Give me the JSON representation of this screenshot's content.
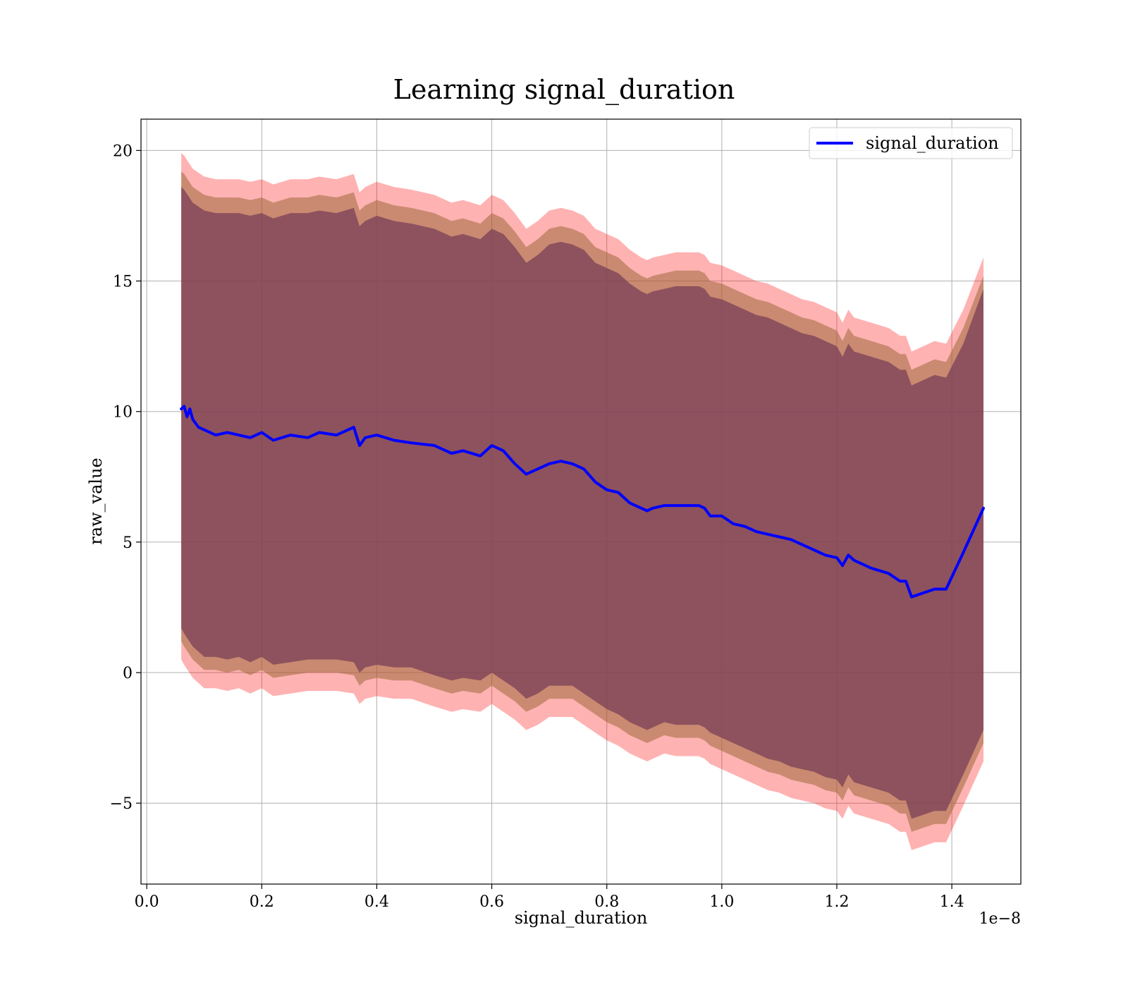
{
  "chart_data": {
    "type": "line",
    "title": "Learning signal_duration",
    "xlabel": "signal_duration",
    "ylabel": "raw_value",
    "x_offset_text": "1e−8",
    "xlim": [
      -0.01,
      1.52
    ],
    "ylim": [
      -8.1,
      21.2
    ],
    "x_ticks": [
      0.0,
      0.2,
      0.4,
      0.6,
      0.8,
      1.0,
      1.2,
      1.4
    ],
    "x_tick_labels": [
      "0.0",
      "0.2",
      "0.4",
      "0.6",
      "0.8",
      "1.0",
      "1.2",
      "1.4"
    ],
    "y_ticks": [
      -5,
      0,
      5,
      10,
      15,
      20
    ],
    "y_tick_labels": [
      "−5",
      "0",
      "5",
      "10",
      "15",
      "20"
    ],
    "grid": true,
    "legend_position": "top-right",
    "series": [
      {
        "name": "signal_duration",
        "color": "#0000ff",
        "x": [
          0.06,
          0.065,
          0.07,
          0.075,
          0.08,
          0.09,
          0.1,
          0.12,
          0.14,
          0.16,
          0.18,
          0.2,
          0.22,
          0.25,
          0.28,
          0.3,
          0.33,
          0.36,
          0.37,
          0.38,
          0.4,
          0.43,
          0.46,
          0.5,
          0.53,
          0.55,
          0.58,
          0.6,
          0.62,
          0.64,
          0.66,
          0.68,
          0.7,
          0.72,
          0.74,
          0.76,
          0.78,
          0.8,
          0.82,
          0.84,
          0.86,
          0.87,
          0.88,
          0.9,
          0.92,
          0.94,
          0.96,
          0.97,
          0.98,
          1.0,
          1.02,
          1.04,
          1.06,
          1.08,
          1.1,
          1.12,
          1.14,
          1.16,
          1.18,
          1.2,
          1.21,
          1.22,
          1.23,
          1.26,
          1.29,
          1.31,
          1.32,
          1.33,
          1.37,
          1.39,
          1.42,
          1.455
        ],
        "values": [
          10.1,
          10.2,
          9.8,
          10.1,
          9.7,
          9.4,
          9.3,
          9.1,
          9.2,
          9.1,
          9.0,
          9.2,
          8.9,
          9.1,
          9.0,
          9.2,
          9.1,
          9.4,
          8.7,
          9.0,
          9.1,
          8.9,
          8.8,
          8.7,
          8.4,
          8.5,
          8.3,
          8.7,
          8.5,
          8.0,
          7.6,
          7.8,
          8.0,
          8.1,
          8.0,
          7.8,
          7.3,
          7.0,
          6.9,
          6.5,
          6.3,
          6.2,
          6.3,
          6.4,
          6.4,
          6.4,
          6.4,
          6.3,
          6.0,
          6.0,
          5.7,
          5.6,
          5.4,
          5.3,
          5.2,
          5.1,
          4.9,
          4.7,
          4.5,
          4.4,
          4.1,
          4.5,
          4.3,
          4.0,
          3.8,
          3.5,
          3.5,
          2.9,
          3.2,
          3.2,
          4.6,
          6.3
        ]
      }
    ],
    "bands": [
      {
        "color": "#ff0000",
        "opacity": 0.3,
        "x": [
          0.06,
          0.065,
          0.08,
          0.1,
          0.12,
          0.14,
          0.16,
          0.18,
          0.2,
          0.22,
          0.25,
          0.28,
          0.3,
          0.33,
          0.36,
          0.37,
          0.38,
          0.4,
          0.43,
          0.46,
          0.5,
          0.53,
          0.55,
          0.58,
          0.6,
          0.62,
          0.64,
          0.66,
          0.68,
          0.7,
          0.72,
          0.74,
          0.76,
          0.78,
          0.8,
          0.82,
          0.84,
          0.86,
          0.87,
          0.88,
          0.9,
          0.92,
          0.94,
          0.96,
          0.97,
          0.98,
          1.0,
          1.02,
          1.04,
          1.06,
          1.08,
          1.1,
          1.12,
          1.14,
          1.16,
          1.18,
          1.2,
          1.21,
          1.22,
          1.23,
          1.26,
          1.29,
          1.31,
          1.32,
          1.33,
          1.37,
          1.39,
          1.42,
          1.455
        ],
        "upper": [
          19.9,
          19.8,
          19.3,
          19.0,
          18.9,
          18.9,
          18.9,
          18.8,
          18.9,
          18.7,
          18.9,
          18.9,
          19.0,
          18.9,
          19.1,
          18.4,
          18.6,
          18.8,
          18.6,
          18.5,
          18.3,
          18.0,
          18.1,
          17.9,
          18.3,
          18.1,
          17.6,
          17.0,
          17.3,
          17.7,
          17.8,
          17.7,
          17.5,
          17.0,
          16.8,
          16.6,
          16.2,
          15.9,
          15.8,
          15.9,
          16.0,
          16.1,
          16.1,
          16.1,
          16.0,
          15.7,
          15.6,
          15.4,
          15.2,
          15.0,
          14.9,
          14.7,
          14.5,
          14.3,
          14.2,
          14.0,
          13.8,
          13.4,
          13.9,
          13.6,
          13.4,
          13.2,
          12.9,
          12.9,
          12.3,
          12.7,
          12.6,
          13.9,
          15.9
        ],
        "lower": [
          0.5,
          0.3,
          -0.2,
          -0.6,
          -0.6,
          -0.7,
          -0.6,
          -0.8,
          -0.6,
          -0.9,
          -0.8,
          -0.7,
          -0.7,
          -0.7,
          -0.8,
          -1.2,
          -1.0,
          -0.9,
          -1.0,
          -1.0,
          -1.3,
          -1.5,
          -1.4,
          -1.5,
          -1.2,
          -1.5,
          -1.8,
          -2.2,
          -2.0,
          -1.7,
          -1.7,
          -1.7,
          -2.0,
          -2.3,
          -2.6,
          -2.8,
          -3.1,
          -3.3,
          -3.4,
          -3.3,
          -3.1,
          -3.2,
          -3.2,
          -3.2,
          -3.3,
          -3.5,
          -3.7,
          -3.9,
          -4.1,
          -4.3,
          -4.5,
          -4.6,
          -4.8,
          -4.9,
          -5.0,
          -5.2,
          -5.3,
          -5.6,
          -5.1,
          -5.4,
          -5.6,
          -5.8,
          -6.1,
          -6.1,
          -6.8,
          -6.5,
          -6.5,
          -5.1,
          -3.4
        ]
      },
      {
        "color": "#9e6a3c",
        "opacity": 0.55,
        "x": [
          0.06,
          0.065,
          0.08,
          0.1,
          0.12,
          0.14,
          0.16,
          0.18,
          0.2,
          0.22,
          0.25,
          0.28,
          0.3,
          0.33,
          0.36,
          0.37,
          0.38,
          0.4,
          0.43,
          0.46,
          0.5,
          0.53,
          0.55,
          0.58,
          0.6,
          0.62,
          0.64,
          0.66,
          0.68,
          0.7,
          0.72,
          0.74,
          0.76,
          0.78,
          0.8,
          0.82,
          0.84,
          0.86,
          0.87,
          0.88,
          0.9,
          0.92,
          0.94,
          0.96,
          0.97,
          0.98,
          1.0,
          1.02,
          1.04,
          1.06,
          1.08,
          1.1,
          1.12,
          1.14,
          1.16,
          1.18,
          1.2,
          1.21,
          1.22,
          1.23,
          1.26,
          1.29,
          1.31,
          1.32,
          1.33,
          1.37,
          1.39,
          1.42,
          1.455
        ],
        "upper": [
          19.2,
          19.1,
          18.6,
          18.3,
          18.2,
          18.2,
          18.2,
          18.1,
          18.2,
          18.0,
          18.2,
          18.2,
          18.3,
          18.2,
          18.4,
          17.7,
          17.9,
          18.1,
          17.9,
          17.8,
          17.6,
          17.3,
          17.4,
          17.2,
          17.6,
          17.4,
          16.9,
          16.3,
          16.6,
          17.0,
          17.1,
          17.0,
          16.8,
          16.3,
          16.1,
          15.9,
          15.5,
          15.2,
          15.1,
          15.2,
          15.3,
          15.4,
          15.4,
          15.4,
          15.3,
          15.0,
          14.9,
          14.7,
          14.5,
          14.3,
          14.2,
          14.0,
          13.8,
          13.6,
          13.5,
          13.3,
          13.1,
          12.7,
          13.2,
          12.9,
          12.7,
          12.5,
          12.2,
          12.2,
          11.6,
          12.0,
          11.9,
          13.2,
          15.2
        ],
        "lower": [
          1.2,
          1.0,
          0.5,
          0.1,
          0.1,
          0.0,
          0.1,
          -0.1,
          0.1,
          -0.2,
          -0.1,
          0.0,
          0.0,
          0.0,
          -0.1,
          -0.5,
          -0.3,
          -0.2,
          -0.3,
          -0.3,
          -0.6,
          -0.8,
          -0.7,
          -0.8,
          -0.5,
          -0.8,
          -1.1,
          -1.5,
          -1.3,
          -1.0,
          -1.0,
          -1.0,
          -1.3,
          -1.6,
          -1.9,
          -2.1,
          -2.4,
          -2.6,
          -2.7,
          -2.6,
          -2.4,
          -2.5,
          -2.5,
          -2.5,
          -2.6,
          -2.8,
          -3.0,
          -3.2,
          -3.4,
          -3.6,
          -3.8,
          -3.9,
          -4.1,
          -4.2,
          -4.3,
          -4.5,
          -4.6,
          -4.9,
          -4.4,
          -4.7,
          -4.9,
          -5.1,
          -5.4,
          -5.4,
          -6.1,
          -5.8,
          -5.8,
          -4.4,
          -2.7
        ]
      },
      {
        "color": "#7a3f58",
        "opacity": 0.75,
        "x": [
          0.06,
          0.065,
          0.08,
          0.1,
          0.12,
          0.14,
          0.16,
          0.18,
          0.2,
          0.22,
          0.25,
          0.28,
          0.3,
          0.33,
          0.36,
          0.37,
          0.38,
          0.4,
          0.43,
          0.46,
          0.5,
          0.53,
          0.55,
          0.58,
          0.6,
          0.62,
          0.64,
          0.66,
          0.68,
          0.7,
          0.72,
          0.74,
          0.76,
          0.78,
          0.8,
          0.82,
          0.84,
          0.86,
          0.87,
          0.88,
          0.9,
          0.92,
          0.94,
          0.96,
          0.97,
          0.98,
          1.0,
          1.02,
          1.04,
          1.06,
          1.08,
          1.1,
          1.12,
          1.14,
          1.16,
          1.18,
          1.2,
          1.21,
          1.22,
          1.23,
          1.26,
          1.29,
          1.31,
          1.32,
          1.33,
          1.37,
          1.39,
          1.42,
          1.455
        ],
        "upper": [
          18.6,
          18.5,
          18.0,
          17.7,
          17.6,
          17.6,
          17.6,
          17.5,
          17.6,
          17.4,
          17.6,
          17.6,
          17.7,
          17.6,
          17.8,
          17.1,
          17.3,
          17.5,
          17.3,
          17.2,
          17.0,
          16.7,
          16.8,
          16.6,
          17.0,
          16.8,
          16.3,
          15.7,
          16.0,
          16.4,
          16.5,
          16.4,
          16.2,
          15.7,
          15.5,
          15.3,
          14.9,
          14.6,
          14.5,
          14.6,
          14.7,
          14.8,
          14.8,
          14.8,
          14.7,
          14.4,
          14.3,
          14.1,
          13.9,
          13.7,
          13.6,
          13.4,
          13.2,
          13.0,
          12.9,
          12.7,
          12.5,
          12.1,
          12.6,
          12.3,
          12.1,
          11.9,
          11.6,
          11.6,
          11.0,
          11.4,
          11.3,
          12.6,
          14.7
        ],
        "lower": [
          1.7,
          1.5,
          1.0,
          0.6,
          0.6,
          0.5,
          0.6,
          0.4,
          0.6,
          0.3,
          0.4,
          0.5,
          0.5,
          0.5,
          0.4,
          0.0,
          0.2,
          0.3,
          0.2,
          0.2,
          -0.1,
          -0.3,
          -0.2,
          -0.3,
          0.0,
          -0.3,
          -0.6,
          -1.0,
          -0.8,
          -0.5,
          -0.5,
          -0.5,
          -0.8,
          -1.1,
          -1.4,
          -1.6,
          -1.9,
          -2.1,
          -2.2,
          -2.1,
          -1.9,
          -2.0,
          -2.0,
          -2.0,
          -2.1,
          -2.3,
          -2.5,
          -2.7,
          -2.9,
          -3.1,
          -3.3,
          -3.4,
          -3.6,
          -3.7,
          -3.8,
          -4.0,
          -4.1,
          -4.4,
          -3.9,
          -4.2,
          -4.4,
          -4.6,
          -4.9,
          -4.9,
          -5.6,
          -5.3,
          -5.3,
          -3.9,
          -2.2
        ]
      }
    ]
  }
}
